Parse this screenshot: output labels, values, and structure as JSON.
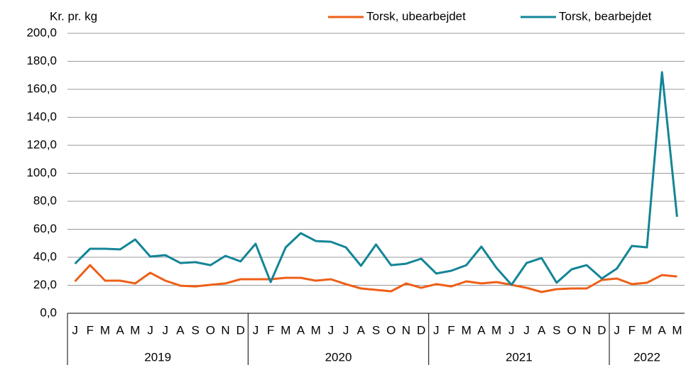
{
  "chart_data": {
    "type": "line",
    "y_label": "Kr. pr. kg",
    "categories": [
      "J",
      "F",
      "M",
      "A",
      "M",
      "J",
      "J",
      "A",
      "S",
      "O",
      "N",
      "D",
      "J",
      "F",
      "M",
      "A",
      "M",
      "J",
      "J",
      "A",
      "S",
      "O",
      "N",
      "D",
      "J",
      "F",
      "M",
      "A",
      "M",
      "J",
      "J",
      "A",
      "S",
      "O",
      "N",
      "D",
      "J",
      "F",
      "M",
      "A",
      "M"
    ],
    "groups": [
      "2019",
      "2020",
      "2021",
      "2022"
    ],
    "series": [
      {
        "name": "Torsk, ubearbejdet",
        "color": "#ee5f17",
        "values": [
          22.8,
          34.4,
          23.3,
          23.3,
          21.3,
          28.9,
          23.3,
          19.7,
          19.2,
          20.3,
          21.3,
          24.3,
          24.3,
          24.3,
          25.3,
          25.3,
          23.3,
          24.3,
          20.8,
          17.7,
          16.7,
          15.7,
          21.3,
          18.2,
          20.8,
          19.2,
          22.8,
          21.3,
          22.3,
          20.3,
          18.2,
          15.2,
          17.2,
          17.7,
          17.7,
          23.8,
          24.8,
          20.8,
          21.8,
          27.3,
          26.3
        ]
      },
      {
        "name": "Torsk, bearbejdet",
        "color": "#138597",
        "values": [
          35.4,
          46.1,
          46.1,
          45.6,
          52.7,
          40.5,
          41.5,
          35.9,
          36.5,
          34.4,
          41.0,
          37.0,
          49.6,
          22.3,
          47.1,
          57.2,
          51.6,
          51.1,
          47.1,
          33.9,
          49.1,
          34.4,
          35.4,
          39.0,
          28.4,
          30.4,
          34.4,
          47.6,
          32.4,
          20.3,
          35.9,
          39.5,
          21.8,
          31.4,
          34.4,
          24.8,
          31.9,
          48.1,
          47.1,
          172.2,
          68.9
        ]
      }
    ],
    "ylim": [
      0,
      200
    ],
    "yticks": [
      {
        "value": 0,
        "label": "0,0"
      },
      {
        "value": 20,
        "label": "20,0"
      },
      {
        "value": 40,
        "label": "40,0"
      },
      {
        "value": 60,
        "label": "60,0"
      },
      {
        "value": 80,
        "label": "80,0"
      },
      {
        "value": 100,
        "label": "100,0"
      },
      {
        "value": 120,
        "label": "120,0"
      },
      {
        "value": 140,
        "label": "140,0"
      },
      {
        "value": 160,
        "label": "160,0"
      },
      {
        "value": 180,
        "label": "180,0"
      },
      {
        "value": 200,
        "label": "200,0"
      }
    ],
    "grid": true,
    "legend": "top-right"
  }
}
